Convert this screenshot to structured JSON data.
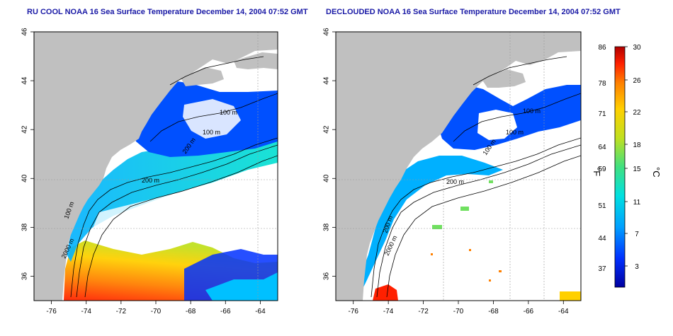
{
  "left_panel": {
    "title": "RU COOL NOAA 16 Sea Surface Temperature December 14, 2004 07:52 GMT",
    "contour_labels": [
      "100 m",
      "100 m",
      "200 m",
      "200 m",
      "100 m",
      "2000 m"
    ]
  },
  "right_panel": {
    "title": "DECLOUDED NOAA 16 Sea Surface Temperature December 14, 2004 07:52 GMT",
    "contour_labels": [
      "100 m",
      "100 m",
      "100 m",
      "200 m",
      "200 m",
      "2000 m"
    ]
  },
  "axes": {
    "lon_ticks": [
      "-76",
      "-74",
      "-72",
      "-70",
      "-68",
      "-66",
      "-64"
    ],
    "lat_ticks": [
      "36",
      "38",
      "40",
      "42",
      "44",
      "46"
    ],
    "lon_range": [
      -77,
      -63
    ],
    "lat_range": [
      35,
      46
    ]
  },
  "colorbar": {
    "f_label": "°F",
    "c_label": "°C",
    "f_ticks": [
      "86",
      "78",
      "71",
      "64",
      "59",
      "51",
      "44",
      "37"
    ],
    "c_ticks": [
      "30",
      "26",
      "22",
      "18",
      "15",
      "11",
      "7",
      "3"
    ],
    "colors": [
      "#0000a0",
      "#0030ff",
      "#00a0ff",
      "#00e0e0",
      "#40e080",
      "#c0e020",
      "#ffd000",
      "#ff8000",
      "#ff2000",
      "#b00000"
    ]
  },
  "colors": {
    "land": "#c0c0c0",
    "water_cloud": "#ffffff",
    "title": "#1a1aa6",
    "frame": "#000000"
  }
}
